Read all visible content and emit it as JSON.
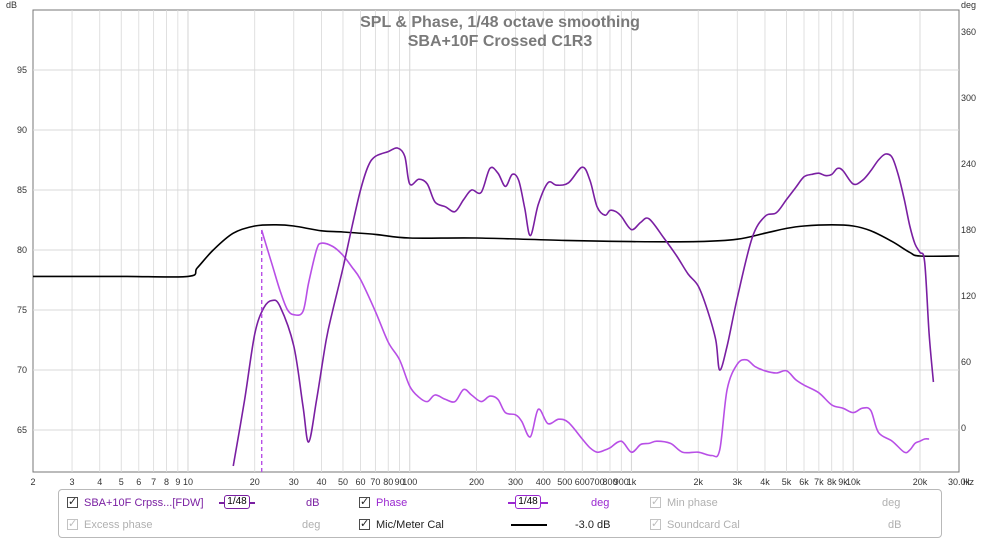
{
  "chart_data": {
    "type": "line",
    "title": "SPL & Phase, 1/48 octave smoothing",
    "subtitle": "SBA+10F Crossed C1R3",
    "x_unit": "Hz",
    "x_scale": "log",
    "xlim": [
      2,
      30000
    ],
    "x_tick_labels": [
      "2",
      "3",
      "4",
      "5",
      "6",
      "7",
      "8",
      "9",
      "10",
      "20",
      "30",
      "40",
      "50",
      "60",
      "70",
      "80",
      "90",
      "100",
      "200",
      "300",
      "400",
      "500",
      "600",
      "700",
      "800",
      "900",
      "1k",
      "2k",
      "3k",
      "4k",
      "5k",
      "6k",
      "7k",
      "8k",
      "9k",
      "10k",
      "20k",
      "30.0k"
    ],
    "left_unit": "dB",
    "left_ylim": [
      61.5,
      100
    ],
    "left_ticks": [
      65,
      70,
      75,
      80,
      85,
      90,
      95
    ],
    "right_unit": "deg",
    "right_ylim": [
      -40,
      380
    ],
    "right_ticks": [
      0,
      60,
      120,
      180,
      240,
      300,
      360
    ],
    "grid": true,
    "series": [
      {
        "name": "Mic/Meter Cal",
        "axis": "left",
        "color": "#000000",
        "x": [
          2,
          5,
          10,
          11,
          13,
          16,
          20,
          25,
          30,
          40,
          50,
          70,
          100,
          200,
          500,
          1000,
          2000,
          3000,
          4000,
          5000,
          6000,
          8000,
          10000,
          12000,
          15000,
          18000,
          20000,
          30000
        ],
        "y": [
          77.8,
          77.8,
          77.8,
          78.5,
          80.0,
          81.4,
          82.0,
          82.1,
          82.0,
          81.6,
          81.5,
          81.3,
          81.0,
          81.0,
          80.8,
          80.7,
          80.7,
          80.9,
          81.4,
          81.8,
          82.0,
          82.1,
          82.0,
          81.6,
          80.7,
          79.8,
          79.5,
          79.5
        ]
      },
      {
        "name": "SBA+10F Crpss...[FDW]",
        "axis": "left",
        "color": "#7a1fa2",
        "x": [
          16,
          18,
          20,
          22,
          24,
          26,
          30,
          33,
          35,
          38,
          42,
          45,
          50,
          55,
          60,
          65,
          70,
          80,
          88,
          95,
          100,
          110,
          120,
          130,
          145,
          160,
          175,
          190,
          210,
          230,
          250,
          270,
          290,
          310,
          330,
          350,
          380,
          420,
          460,
          520,
          600,
          650,
          700,
          760,
          800,
          850,
          900,
          1000,
          1100,
          1200,
          1400,
          1600,
          1800,
          2000,
          2200,
          2400,
          2500,
          2700,
          3000,
          3500,
          4000,
          4500,
          5000,
          5500,
          6000,
          6500,
          7000,
          7500,
          8000,
          8500,
          9000,
          10000,
          11000,
          12000,
          13000,
          14000,
          15000,
          16000,
          17000,
          18000,
          19000,
          20000,
          21000,
          22000,
          23000
        ],
        "y": [
          62.0,
          67.5,
          73.0,
          75.2,
          75.8,
          75.3,
          72.0,
          67.0,
          64.0,
          67.5,
          72.5,
          75.0,
          78.5,
          82.0,
          85.0,
          87.0,
          87.8,
          88.2,
          88.5,
          87.8,
          85.5,
          85.9,
          85.5,
          84.0,
          83.6,
          83.2,
          84.2,
          85.0,
          84.8,
          86.8,
          86.4,
          85.3,
          86.3,
          85.8,
          83.5,
          81.2,
          83.8,
          85.6,
          85.4,
          85.6,
          86.9,
          85.8,
          83.6,
          82.9,
          83.3,
          83.2,
          82.8,
          81.7,
          82.3,
          82.6,
          81.0,
          79.5,
          78.0,
          77.0,
          75.0,
          72.5,
          70.0,
          72.0,
          76.0,
          81.0,
          82.8,
          83.1,
          84.2,
          85.2,
          86.1,
          86.3,
          86.4,
          86.2,
          86.3,
          86.8,
          86.6,
          85.5,
          85.8,
          86.6,
          87.5,
          88.0,
          87.7,
          86.2,
          84.2,
          82.0,
          80.5,
          79.8,
          79.0,
          73.0,
          69.0
        ]
      },
      {
        "name": "Phase",
        "axis": "right",
        "color": "#b84fe6",
        "x": [
          21.5,
          22,
          24,
          26,
          28,
          30,
          33,
          35,
          38,
          40,
          45,
          50,
          55,
          60,
          70,
          80,
          90,
          100,
          110,
          120,
          130,
          145,
          160,
          175,
          190,
          210,
          230,
          250,
          270,
          300,
          320,
          350,
          380,
          420,
          470,
          520,
          600,
          650,
          700,
          760,
          800,
          900,
          1000,
          1100,
          1200,
          1300,
          1500,
          1700,
          2000,
          2300,
          2500,
          2700,
          3000,
          3300,
          3600,
          4000,
          4500,
          5000,
          5500,
          6000,
          7000,
          8000,
          9000,
          10000,
          11000,
          12000,
          13000,
          15000,
          17000,
          18000,
          19000,
          20000,
          21000,
          22000
        ],
        "y": [
          180,
          173,
          148,
          125,
          108,
          103,
          106,
          132,
          162,
          168,
          165,
          157,
          146,
          135,
          106,
          78,
          62,
          38,
          28,
          24,
          30,
          26,
          24,
          35,
          30,
          24,
          29,
          26,
          14,
          12,
          6,
          -8,
          17,
          4,
          8,
          5,
          -10,
          -18,
          -22,
          -20,
          -18,
          -12,
          -22,
          -15,
          -14,
          -12,
          -14,
          -22,
          -22,
          -25,
          -20,
          35,
          58,
          62,
          56,
          52,
          50,
          52,
          44,
          39,
          32,
          21,
          18,
          14,
          18,
          16,
          -4,
          -12,
          -22,
          -20,
          -14,
          -12,
          -10,
          -10
        ]
      }
    ],
    "markers": [
      {
        "type": "vertical-dashed",
        "x": 21.5,
        "axis": "right",
        "y_top": 180,
        "color": "#b84fe6"
      }
    ]
  },
  "legend": {
    "items": [
      {
        "label": "SBA+10F Crpss...[FDW]",
        "checked": true,
        "enabled": true,
        "smoothing": "1/48",
        "unit": "dB",
        "color": "#7a1fa2"
      },
      {
        "label": "Phase",
        "checked": true,
        "enabled": true,
        "smoothing": "1/48",
        "unit": "deg",
        "color": "#9a28d0"
      },
      {
        "label": "Min phase",
        "checked": true,
        "enabled": false,
        "unit": "deg"
      },
      {
        "label": "Excess phase",
        "checked": true,
        "enabled": false,
        "unit": "deg"
      },
      {
        "label": "Mic/Meter Cal",
        "checked": true,
        "enabled": true,
        "value": "-3.0 dB"
      },
      {
        "label": "Soundcard Cal",
        "checked": true,
        "enabled": false,
        "unit": "dB"
      }
    ]
  },
  "colors": {
    "grid": "#d8d8d8",
    "axis": "#777777",
    "title": "#7a7a7a",
    "tick_text": "#333333",
    "disabled_text": "#b0b0b0"
  }
}
